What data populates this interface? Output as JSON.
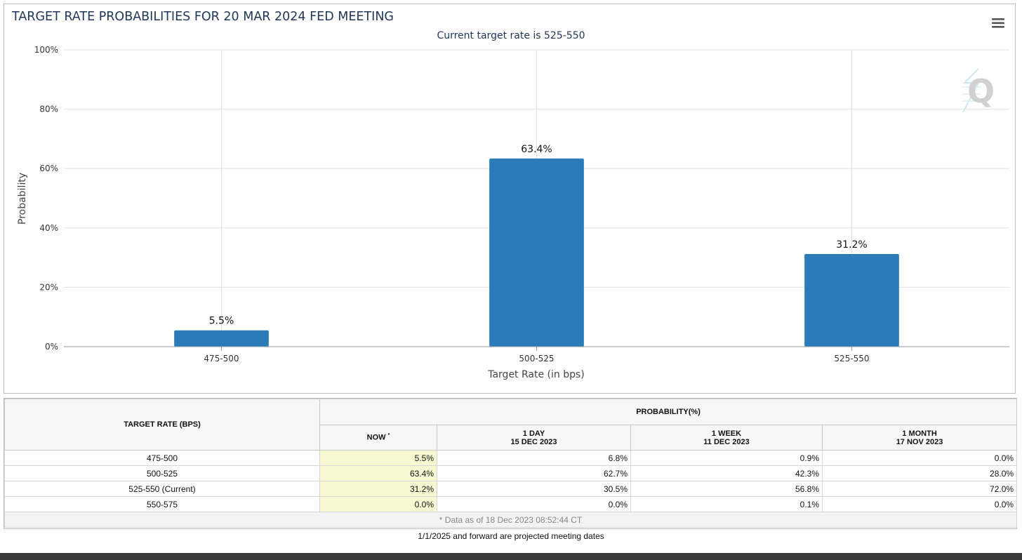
{
  "chart_data": {
    "type": "bar",
    "title": "TARGET RATE PROBABILITIES FOR 20 MAR 2024 FED MEETING",
    "subtitle": "Current target rate is 525-550",
    "xlabel": "Target Rate (in bps)",
    "ylabel": "Probability",
    "categories": [
      "475-500",
      "500-525",
      "525-550"
    ],
    "values": [
      5.5,
      63.4,
      31.2
    ],
    "data_labels": [
      "5.5%",
      "63.4%",
      "31.2%"
    ],
    "ylim": [
      0,
      100
    ],
    "yticks": [
      0,
      20,
      40,
      60,
      80,
      100
    ],
    "ytick_labels": [
      "0%",
      "20%",
      "40%",
      "60%",
      "80%",
      "100%"
    ],
    "grid": true,
    "bar_color": "#2b7bb9",
    "legend": "none"
  },
  "table": {
    "rate_header": "TARGET RATE (BPS)",
    "prob_header": "PROBABILITY(%)",
    "columns": [
      {
        "line1": "NOW",
        "line2": "",
        "mark": "*"
      },
      {
        "line1": "1 DAY",
        "line2": "15 DEC 2023",
        "mark": ""
      },
      {
        "line1": "1 WEEK",
        "line2": "11 DEC 2023",
        "mark": ""
      },
      {
        "line1": "1 MONTH",
        "line2": "17 NOV 2023",
        "mark": ""
      }
    ],
    "rows": [
      {
        "rate": "475-500",
        "values": [
          "5.5%",
          "6.8%",
          "0.9%",
          "0.0%"
        ]
      },
      {
        "rate": "500-525",
        "values": [
          "63.4%",
          "62.7%",
          "42.3%",
          "28.0%"
        ]
      },
      {
        "rate": "525-550 (Current)",
        "values": [
          "31.2%",
          "30.5%",
          "56.8%",
          "72.0%"
        ]
      },
      {
        "rate": "550-575",
        "values": [
          "0.0%",
          "0.0%",
          "0.1%",
          "0.0%"
        ]
      }
    ],
    "footnote": "* Data as of 18 Dec 2023 08:52:44 CT"
  },
  "projected_note": "1/1/2025 and forward are projected meeting dates",
  "icons": {
    "menu": "hamburger-menu-icon",
    "watermark": "q-logo-icon"
  },
  "colors": {
    "now_column": "#f7f7d2",
    "title": "#1f3657"
  }
}
